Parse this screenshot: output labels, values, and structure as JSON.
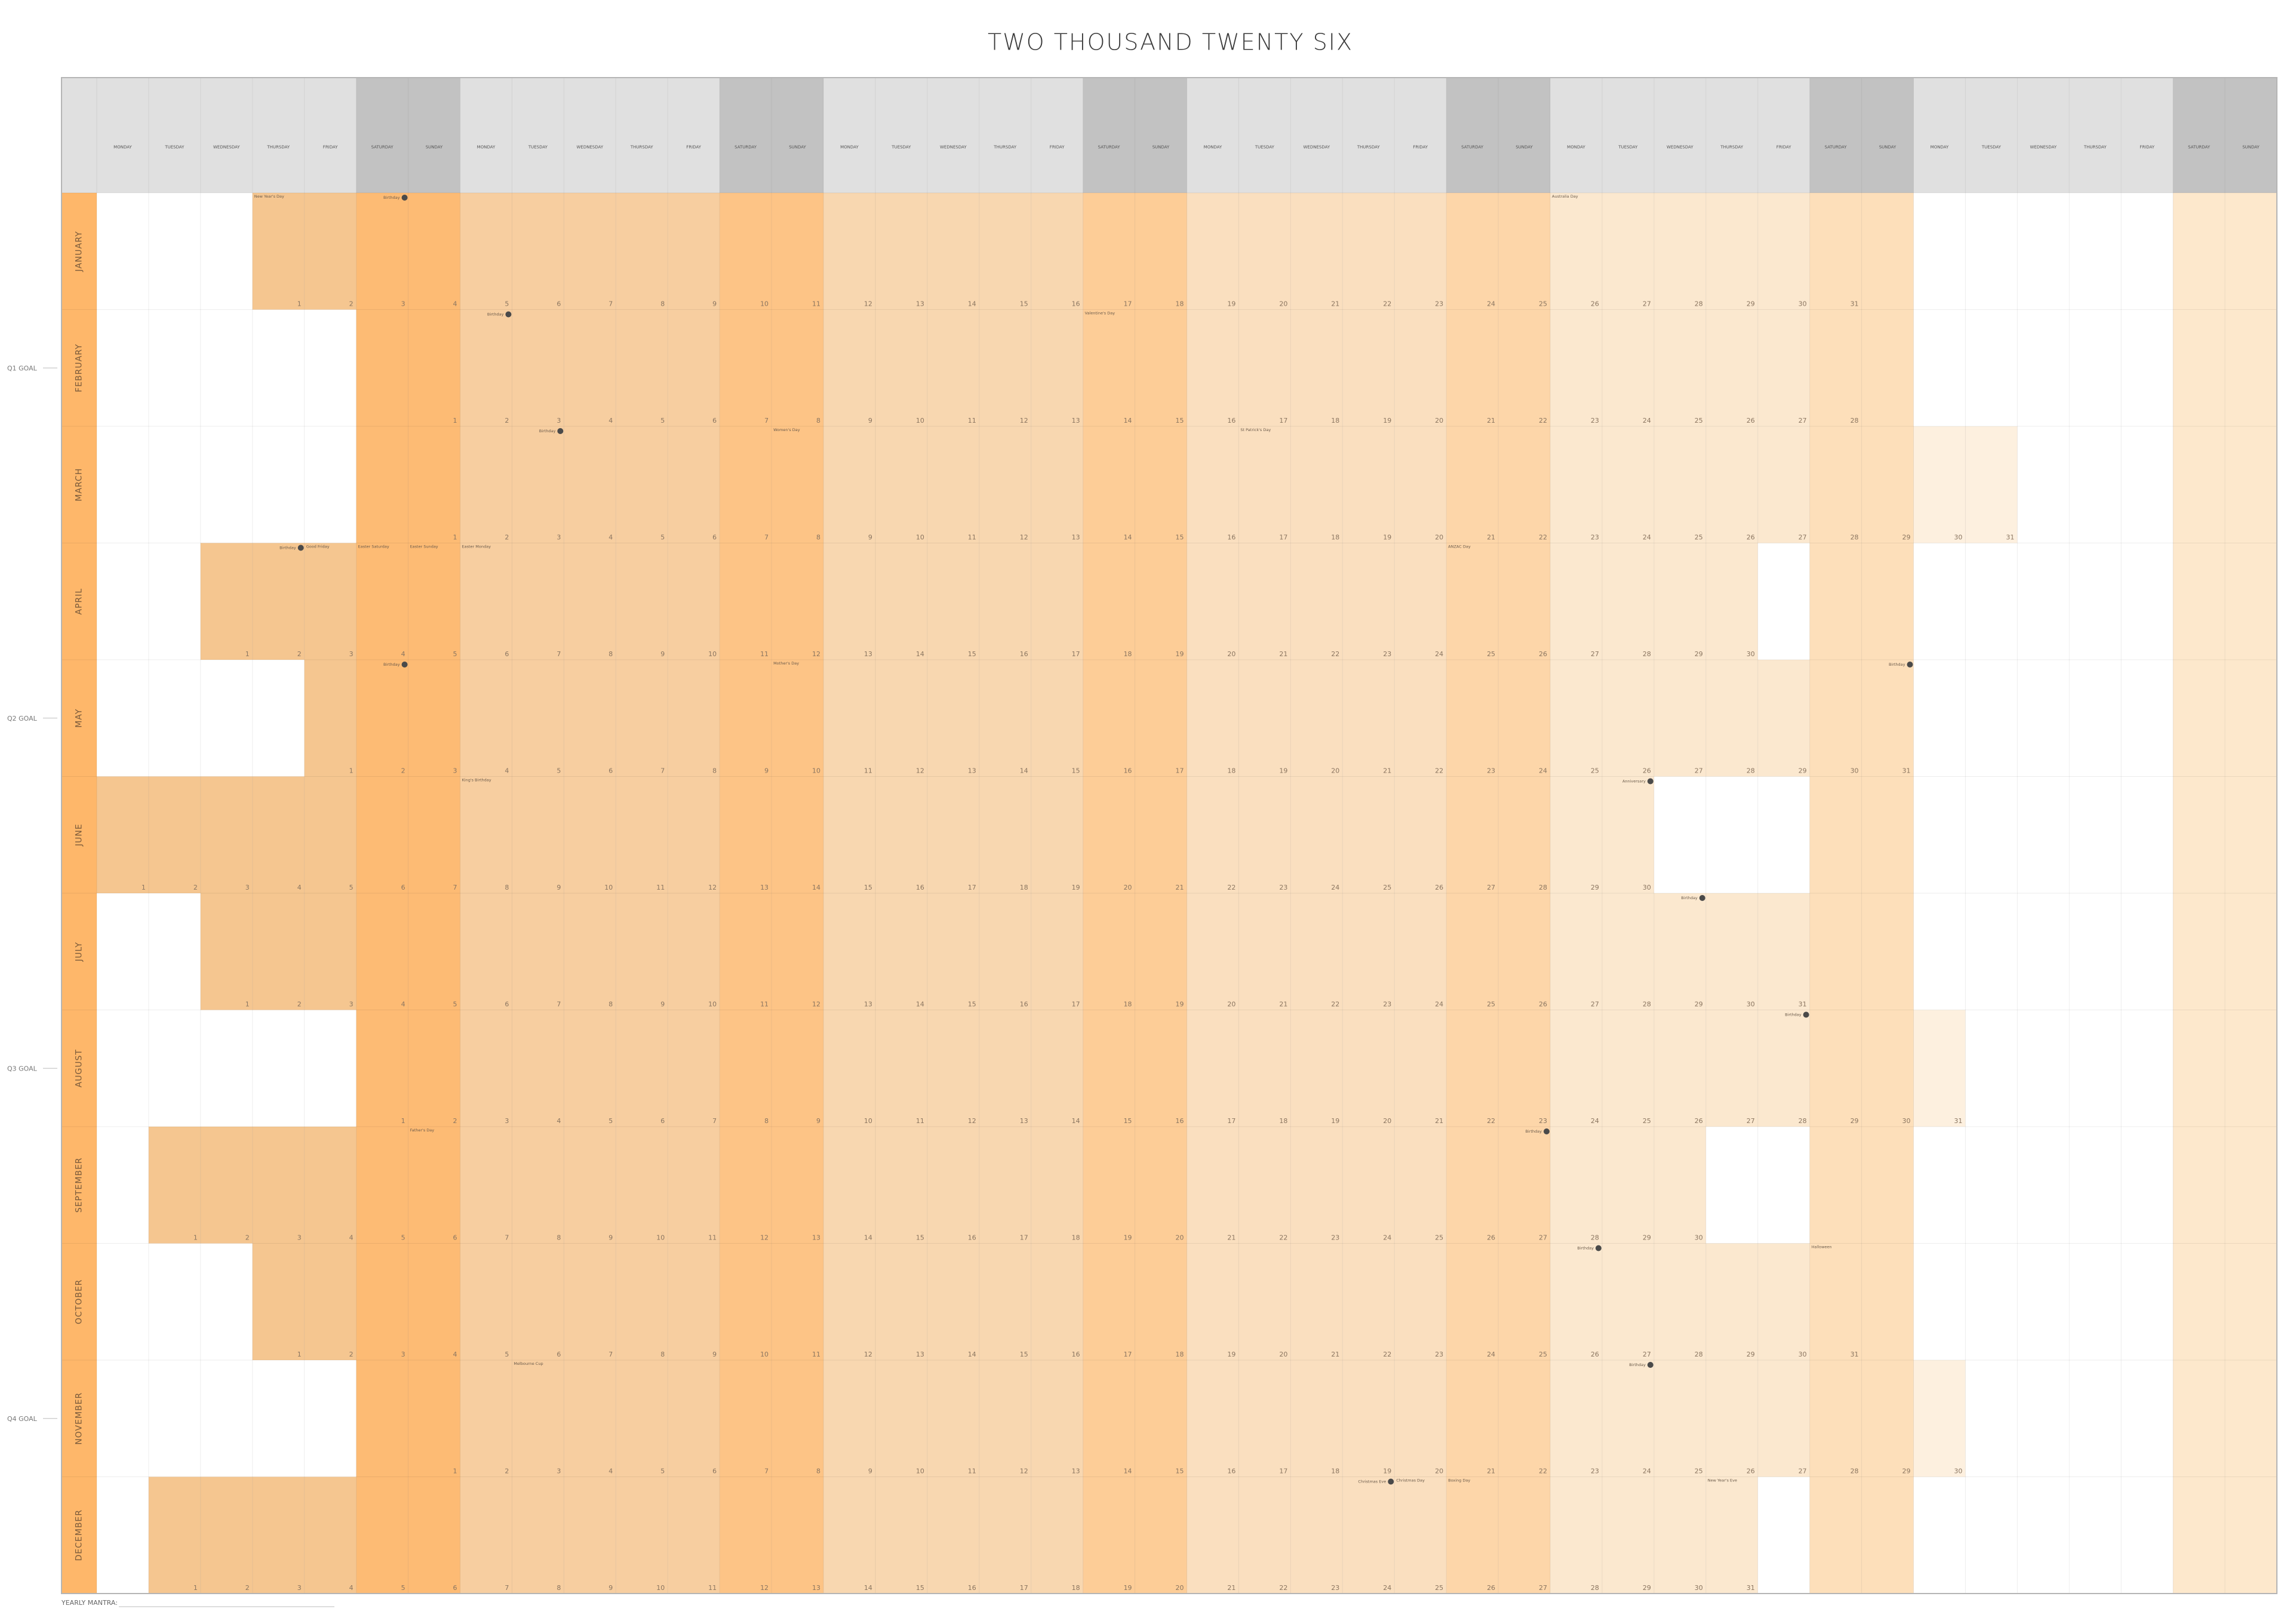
{
  "title": "TWO THOUSAND TWENTY SIX",
  "weekdays": [
    "MONDAY",
    "TUESDAY",
    "WEDNESDAY",
    "THURSDAY",
    "FRIDAY",
    "SATURDAY",
    "SUNDAY",
    "MONDAY",
    "TUESDAY",
    "WEDNESDAY",
    "THURSDAY",
    "FRIDAY",
    "SATURDAY",
    "SUNDAY",
    "MONDAY",
    "TUESDAY",
    "WEDNESDAY",
    "THURSDAY",
    "FRIDAY",
    "SATURDAY",
    "SUNDAY",
    "MONDAY",
    "TUESDAY",
    "WEDNESDAY",
    "THURSDAY",
    "FRIDAY",
    "SATURDAY",
    "SUNDAY",
    "MONDAY",
    "TUESDAY",
    "WEDNESDAY",
    "THURSDAY",
    "FRIDAY",
    "SATURDAY",
    "SUNDAY",
    "MONDAY",
    "TUESDAY",
    "WEDNESDAY",
    "THURSDAY",
    "FRIDAY",
    "SATURDAY",
    "SUNDAY"
  ],
  "months": [
    {
      "name": "JANUARY",
      "cells": [
        null,
        null,
        null,
        1,
        2,
        3,
        4,
        5,
        6,
        7,
        8,
        9,
        10,
        11,
        12,
        13,
        14,
        15,
        16,
        17,
        18,
        19,
        20,
        21,
        22,
        23,
        24,
        25,
        26,
        27,
        28,
        29,
        30,
        31,
        null,
        null,
        null,
        null,
        null,
        null,
        null,
        null
      ],
      "events": [
        {
          "day": 1,
          "label": "New Year's Day",
          "dot": false
        },
        {
          "day": 3,
          "label": "Birthday",
          "dot": true
        },
        {
          "day": 26,
          "label": "Australia Day",
          "dot": false
        }
      ]
    },
    {
      "name": "FEBRUARY",
      "cells": [
        null,
        null,
        null,
        null,
        null,
        null,
        1,
        2,
        3,
        4,
        5,
        6,
        7,
        8,
        9,
        10,
        11,
        12,
        13,
        14,
        15,
        16,
        17,
        18,
        19,
        20,
        21,
        22,
        23,
        24,
        25,
        26,
        27,
        28,
        null,
        null,
        null,
        null,
        null,
        null,
        null,
        null
      ],
      "events": [
        {
          "day": 2,
          "label": "Birthday",
          "dot": true
        },
        {
          "day": 14,
          "label": "Valentine's Day",
          "dot": false
        }
      ]
    },
    {
      "name": "MARCH",
      "cells": [
        null,
        null,
        null,
        null,
        null,
        null,
        1,
        2,
        3,
        4,
        5,
        6,
        7,
        8,
        9,
        10,
        11,
        12,
        13,
        14,
        15,
        16,
        17,
        18,
        19,
        20,
        21,
        22,
        23,
        24,
        25,
        26,
        27,
        28,
        29,
        30,
        31,
        null,
        null,
        null,
        null,
        null
      ],
      "events": [
        {
          "day": 3,
          "label": "Birthday",
          "dot": true
        },
        {
          "day": 8,
          "label": "Women's Day",
          "dot": false
        },
        {
          "day": 17,
          "label": "St Patrick's Day",
          "dot": false
        }
      ]
    },
    {
      "name": "APRIL",
      "cells": [
        null,
        null,
        1,
        2,
        3,
        4,
        5,
        6,
        7,
        8,
        9,
        10,
        11,
        12,
        13,
        14,
        15,
        16,
        17,
        18,
        19,
        20,
        21,
        22,
        23,
        24,
        25,
        26,
        27,
        28,
        29,
        30,
        null,
        null,
        null,
        null,
        null,
        null,
        null,
        null,
        null,
        null
      ],
      "events": [
        {
          "day": 2,
          "label": "Birthday",
          "dot": true
        },
        {
          "day": 3,
          "label": "Good Friday",
          "dot": false
        },
        {
          "day": 4,
          "label": "Easter Saturday",
          "dot": false
        },
        {
          "day": 5,
          "label": "Easter Sunday",
          "dot": false
        },
        {
          "day": 6,
          "label": "Easter Monday",
          "dot": false
        },
        {
          "day": 25,
          "label": "ANZAC Day",
          "dot": false
        }
      ]
    },
    {
      "name": "MAY",
      "cells": [
        null,
        null,
        null,
        null,
        1,
        2,
        3,
        4,
        5,
        6,
        7,
        8,
        9,
        10,
        11,
        12,
        13,
        14,
        15,
        16,
        17,
        18,
        19,
        20,
        21,
        22,
        23,
        24,
        25,
        26,
        27,
        28,
        29,
        30,
        31,
        null,
        null,
        null,
        null,
        null,
        null,
        null
      ],
      "events": [
        {
          "day": 2,
          "label": "Birthday",
          "dot": true
        },
        {
          "day": 10,
          "label": "Mother's Day",
          "dot": false
        },
        {
          "day": 31,
          "label": "Birthday",
          "dot": true
        }
      ]
    },
    {
      "name": "JUNE",
      "cells": [
        1,
        2,
        3,
        4,
        5,
        6,
        7,
        8,
        9,
        10,
        11,
        12,
        13,
        14,
        15,
        16,
        17,
        18,
        19,
        20,
        21,
        22,
        23,
        24,
        25,
        26,
        27,
        28,
        29,
        30,
        null,
        null,
        null,
        null,
        null,
        null,
        null,
        null,
        null,
        null,
        null,
        null
      ],
      "events": [
        {
          "day": 8,
          "label": "King's Birthday",
          "dot": false
        },
        {
          "day": 30,
          "label": "Anniversary",
          "dot": true
        }
      ]
    },
    {
      "name": "JULY",
      "cells": [
        null,
        null,
        1,
        2,
        3,
        4,
        5,
        6,
        7,
        8,
        9,
        10,
        11,
        12,
        13,
        14,
        15,
        16,
        17,
        18,
        19,
        20,
        21,
        22,
        23,
        24,
        25,
        26,
        27,
        28,
        29,
        30,
        31,
        null,
        null,
        null,
        null,
        null,
        null,
        null,
        null,
        null
      ],
      "events": [
        {
          "day": 29,
          "label": "Birthday",
          "dot": true
        }
      ]
    },
    {
      "name": "AUGUST",
      "cells": [
        null,
        null,
        null,
        null,
        null,
        1,
        2,
        3,
        4,
        5,
        6,
        7,
        8,
        9,
        10,
        11,
        12,
        13,
        14,
        15,
        16,
        17,
        18,
        19,
        20,
        21,
        22,
        23,
        24,
        25,
        26,
        27,
        28,
        29,
        30,
        31,
        null,
        null,
        null,
        null,
        null,
        null
      ],
      "events": [
        {
          "day": 28,
          "label": "Birthday",
          "dot": true
        }
      ]
    },
    {
      "name": "SEPTEMBER",
      "cells": [
        null,
        1,
        2,
        3,
        4,
        5,
        6,
        7,
        8,
        9,
        10,
        11,
        12,
        13,
        14,
        15,
        16,
        17,
        18,
        19,
        20,
        21,
        22,
        23,
        24,
        25,
        26,
        27,
        28,
        29,
        30,
        null,
        null,
        null,
        null,
        null,
        null,
        null,
        null,
        null,
        null,
        null
      ],
      "events": [
        {
          "day": 6,
          "label": "Father's Day",
          "dot": false
        },
        {
          "day": 27,
          "label": "Birthday",
          "dot": true
        }
      ]
    },
    {
      "name": "OCTOBER",
      "cells": [
        null,
        null,
        null,
        1,
        2,
        3,
        4,
        5,
        6,
        7,
        8,
        9,
        10,
        11,
        12,
        13,
        14,
        15,
        16,
        17,
        18,
        19,
        20,
        21,
        22,
        23,
        24,
        25,
        26,
        27,
        28,
        29,
        30,
        31,
        null,
        null,
        null,
        null,
        null,
        null,
        null,
        null
      ],
      "events": [
        {
          "day": 26,
          "label": "Birthday",
          "dot": true
        },
        {
          "day": 31,
          "label": "Halloween",
          "dot": false
        }
      ]
    },
    {
      "name": "NOVEMBER",
      "cells": [
        null,
        null,
        null,
        null,
        null,
        null,
        1,
        2,
        3,
        4,
        5,
        6,
        7,
        8,
        9,
        10,
        11,
        12,
        13,
        14,
        15,
        16,
        17,
        18,
        19,
        20,
        21,
        22,
        23,
        24,
        25,
        26,
        27,
        28,
        29,
        30,
        null,
        null,
        null,
        null,
        null,
        null
      ],
      "events": [
        {
          "day": 3,
          "label": "Melbourne Cup",
          "dot": false
        },
        {
          "day": 24,
          "label": "Birthday",
          "dot": true
        }
      ]
    },
    {
      "name": "DECEMBER",
      "cells": [
        null,
        1,
        2,
        3,
        4,
        5,
        6,
        7,
        8,
        9,
        10,
        11,
        12,
        13,
        14,
        15,
        16,
        17,
        18,
        19,
        20,
        21,
        22,
        23,
        24,
        25,
        26,
        27,
        28,
        29,
        30,
        31,
        null,
        null,
        null,
        null,
        null,
        null,
        null,
        null,
        null,
        null
      ],
      "events": [
        {
          "day": 24,
          "label": "Christmas Eve",
          "dot": true
        },
        {
          "day": 25,
          "label": "Christmas Day",
          "dot": false
        },
        {
          "day": 26,
          "label": "Boxing Day",
          "dot": false
        },
        {
          "day": 31,
          "label": "New Year's Eve",
          "dot": false
        }
      ]
    }
  ],
  "goals": [
    "Q1 GOAL",
    "Q2 GOAL",
    "Q3 GOAL",
    "Q4 GOAL"
  ],
  "footer": "YEARLY MANTRA:"
}
